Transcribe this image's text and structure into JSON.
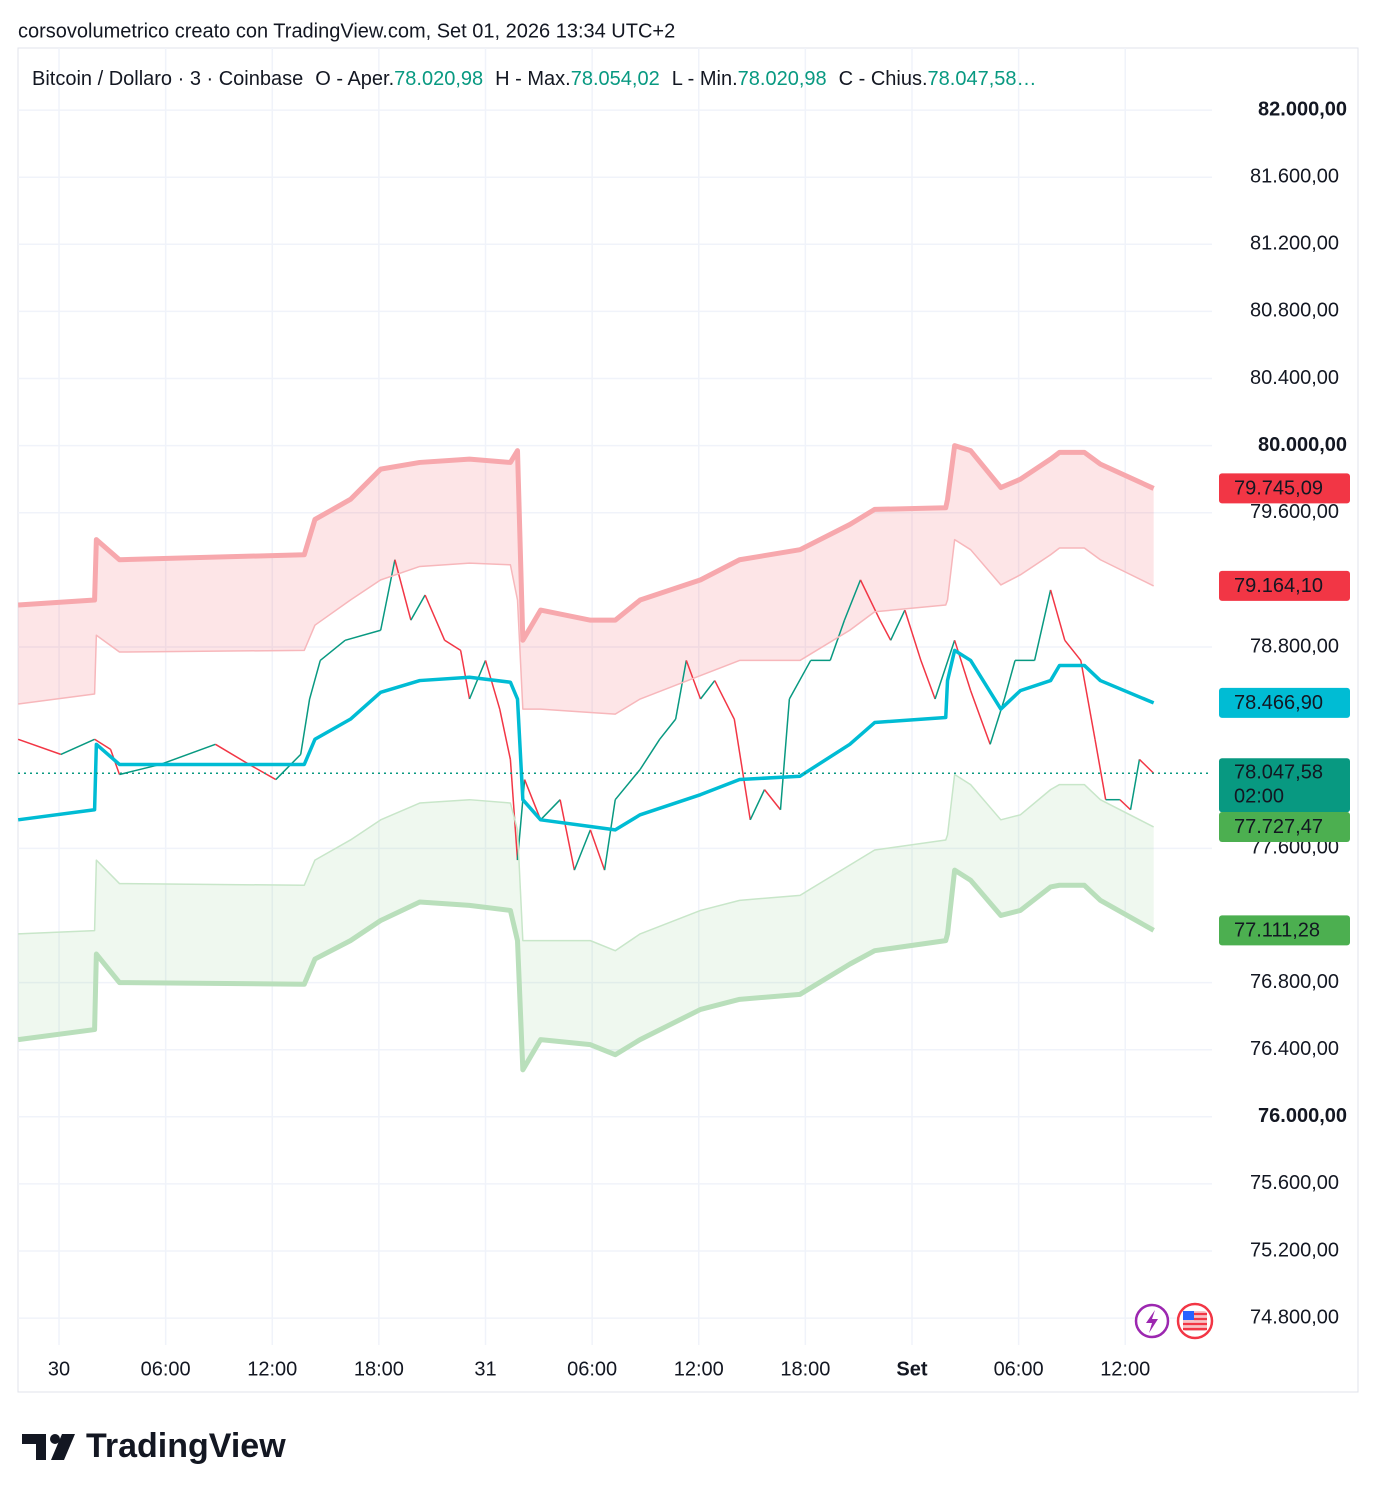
{
  "header": "corsovolumetrico creato con TradingView.com, Set 01, 2026 13:34 UTC+2",
  "legend": {
    "symbol": "Bitcoin / Dollaro · 3 · Coinbase",
    "fields": [
      {
        "label": "O - Aper.",
        "value": "78.020,98"
      },
      {
        "label": "H - Max.",
        "value": "78.054,02"
      },
      {
        "label": "L - Min.",
        "value": "78.020,98"
      },
      {
        "label": "C - Chius.",
        "value": "78.047,58…"
      }
    ]
  },
  "footer": "TradingView",
  "chart_data": {
    "type": "line",
    "xlim": [
      -2.31,
      73.1
    ],
    "xticks": [
      {
        "value": 0,
        "label": "30"
      },
      {
        "value": 6,
        "label": "06:00"
      },
      {
        "value": 12,
        "label": "12:00"
      },
      {
        "value": 18,
        "label": "18:00"
      },
      {
        "value": 24,
        "label": "31"
      },
      {
        "value": 30,
        "label": "06:00"
      },
      {
        "value": 36,
        "label": "12:00"
      },
      {
        "value": 42,
        "label": "18:00"
      },
      {
        "value": 48,
        "label": "Set"
      },
      {
        "value": 54,
        "label": "06:00"
      },
      {
        "value": 60,
        "label": "12:00"
      }
    ],
    "ylim": [
      74640,
      82370
    ],
    "yticks": [
      {
        "value": 82000,
        "label": "82.000,00"
      },
      {
        "value": 81600,
        "label": "81.600,00"
      },
      {
        "value": 81200,
        "label": "81.200,00"
      },
      {
        "value": 80800,
        "label": "80.800,00"
      },
      {
        "value": 80400,
        "label": "80.400,00"
      },
      {
        "value": 80000,
        "label": "80.000,00"
      },
      {
        "value": 79600,
        "label": "79.600,00"
      },
      {
        "value": 78800,
        "label": "78.800,00"
      },
      {
        "value": 77600,
        "label": "77.600,00"
      },
      {
        "value": 76800,
        "label": "76.800,00"
      },
      {
        "value": 76400,
        "label": "76.400,00"
      },
      {
        "value": 76000,
        "label": "76.000,00"
      },
      {
        "value": 75600,
        "label": "75.600,00"
      },
      {
        "value": 75200,
        "label": "75.200,00"
      },
      {
        "value": 74800,
        "label": "74.800,00"
      }
    ],
    "grid": true,
    "x": [
      -2.3,
      2.0,
      2.1,
      3.4,
      13.8,
      14.4,
      16.4,
      18.1,
      20.3,
      23.1,
      25.4,
      25.8,
      26.1,
      27.1,
      29.9,
      31.3,
      32.7,
      36.1,
      38.3,
      41.7,
      44.5,
      45.9,
      49.9,
      50.0,
      50.4,
      51.3,
      53.0,
      54.1,
      55.8,
      56.3,
      57.7,
      58.6,
      61.6
    ],
    "series": [
      {
        "up_color": "#089981",
        "down_color": "#f23645",
        "width": 1.5,
        "last_label": "78.047,58",
        "countdown": "02:00",
        "label_color": "#089981",
        "x": [
          -2.3,
          0.1,
          2.0,
          2.9,
          3.4,
          5.7,
          8.8,
          10.7,
          12.2,
          13.6,
          14.1,
          14.7,
          16.1,
          18.1,
          18.9,
          19.8,
          20.6,
          21.7,
          22.6,
          23.1,
          24.0,
          24.8,
          25.4,
          25.8,
          26.2,
          27.1,
          28.2,
          29.0,
          29.9,
          30.7,
          31.3,
          32.7,
          33.8,
          34.7,
          35.3,
          36.1,
          36.9,
          38.0,
          38.9,
          39.7,
          40.6,
          41.1,
          42.3,
          43.4,
          44.2,
          45.1,
          46.2,
          46.8,
          47.6,
          48.5,
          49.3,
          50.4,
          51.3,
          52.4,
          53.2,
          53.8,
          54.9,
          55.8,
          56.6,
          57.5,
          58.3,
          58.9,
          59.7,
          60.3,
          60.8,
          61.6
        ],
        "values": [
          78250,
          78160,
          78250,
          78190,
          78040,
          78100,
          78220,
          78100,
          78010,
          78160,
          78490,
          78720,
          78840,
          78900,
          79320,
          78960,
          79110,
          78840,
          78780,
          78490,
          78720,
          78430,
          78130,
          77530,
          78010,
          77770,
          77890,
          77470,
          77710,
          77470,
          77890,
          78070,
          78250,
          78370,
          78720,
          78490,
          78600,
          78370,
          77770,
          77950,
          77830,
          78490,
          78720,
          78720,
          78960,
          79200,
          78960,
          78840,
          79020,
          78720,
          78490,
          78840,
          78540,
          78220,
          78490,
          78720,
          78720,
          79140,
          78840,
          78720,
          78250,
          77890,
          77890,
          77830,
          78130,
          78047.58
        ]
      },
      {
        "color": "#00bcd4",
        "width": 3.5,
        "last_label": "78.466,90",
        "values": [
          77770,
          77830,
          78220,
          78100,
          78100,
          78250,
          78370,
          78530,
          78600,
          78620,
          78590,
          78490,
          77890,
          77770,
          77730,
          77710,
          77800,
          77920,
          78010,
          78030,
          78220,
          78350,
          78380,
          78600,
          78780,
          78720,
          78430,
          78540,
          78600,
          78690,
          78690,
          78600,
          78466.9
        ]
      },
      {
        "color": "#f7a8ad",
        "width": 5,
        "fill": "rgba(242,54,69,0.13)",
        "last_label": "79.745,09",
        "label_color": "#f23645",
        "values": [
          79050,
          79080,
          79440,
          79320,
          79350,
          79560,
          79680,
          79860,
          79900,
          79920,
          79900,
          79970,
          78840,
          79020,
          78960,
          78960,
          79080,
          79200,
          79320,
          79380,
          79530,
          79620,
          79630,
          79680,
          80000,
          79970,
          79750,
          79800,
          79920,
          79960,
          79960,
          79890,
          79745.09
        ]
      },
      {
        "color": "#f7b7bb",
        "width": 1.5,
        "last_label": "79.164,10",
        "label_color": "#f23645",
        "values": [
          78460,
          78520,
          78870,
          78770,
          78780,
          78930,
          79080,
          79200,
          79280,
          79300,
          79290,
          79080,
          78430,
          78430,
          78410,
          78400,
          78490,
          78630,
          78720,
          78720,
          78900,
          79010,
          79050,
          79080,
          79440,
          79380,
          79170,
          79230,
          79350,
          79390,
          79390,
          79320,
          79164.1
        ]
      },
      {
        "color": "#c8e6c9",
        "width": 1.5,
        "last_label": "77.727,47",
        "label_color": "#4caf50",
        "values": [
          77090,
          77110,
          77530,
          77390,
          77380,
          77530,
          77650,
          77770,
          77870,
          77890,
          77870,
          77710,
          77050,
          77050,
          77050,
          76990,
          77090,
          77230,
          77290,
          77320,
          77500,
          77590,
          77650,
          77680,
          78040,
          77980,
          77770,
          77800,
          77950,
          77980,
          77980,
          77890,
          77727.47
        ]
      },
      {
        "color": "#b9dfbb",
        "width": 5,
        "fill": "rgba(76,175,80,0.09)",
        "last_label": "77.111,28",
        "label_color": "#4caf50",
        "values": [
          76460,
          76520,
          76970,
          76800,
          76790,
          76940,
          77050,
          77170,
          77280,
          77260,
          77230,
          77050,
          76280,
          76460,
          76430,
          76370,
          76460,
          76640,
          76700,
          76730,
          76910,
          76990,
          77050,
          77090,
          77470,
          77410,
          77200,
          77230,
          77370,
          77380,
          77380,
          77290,
          77111.28
        ]
      }
    ]
  }
}
